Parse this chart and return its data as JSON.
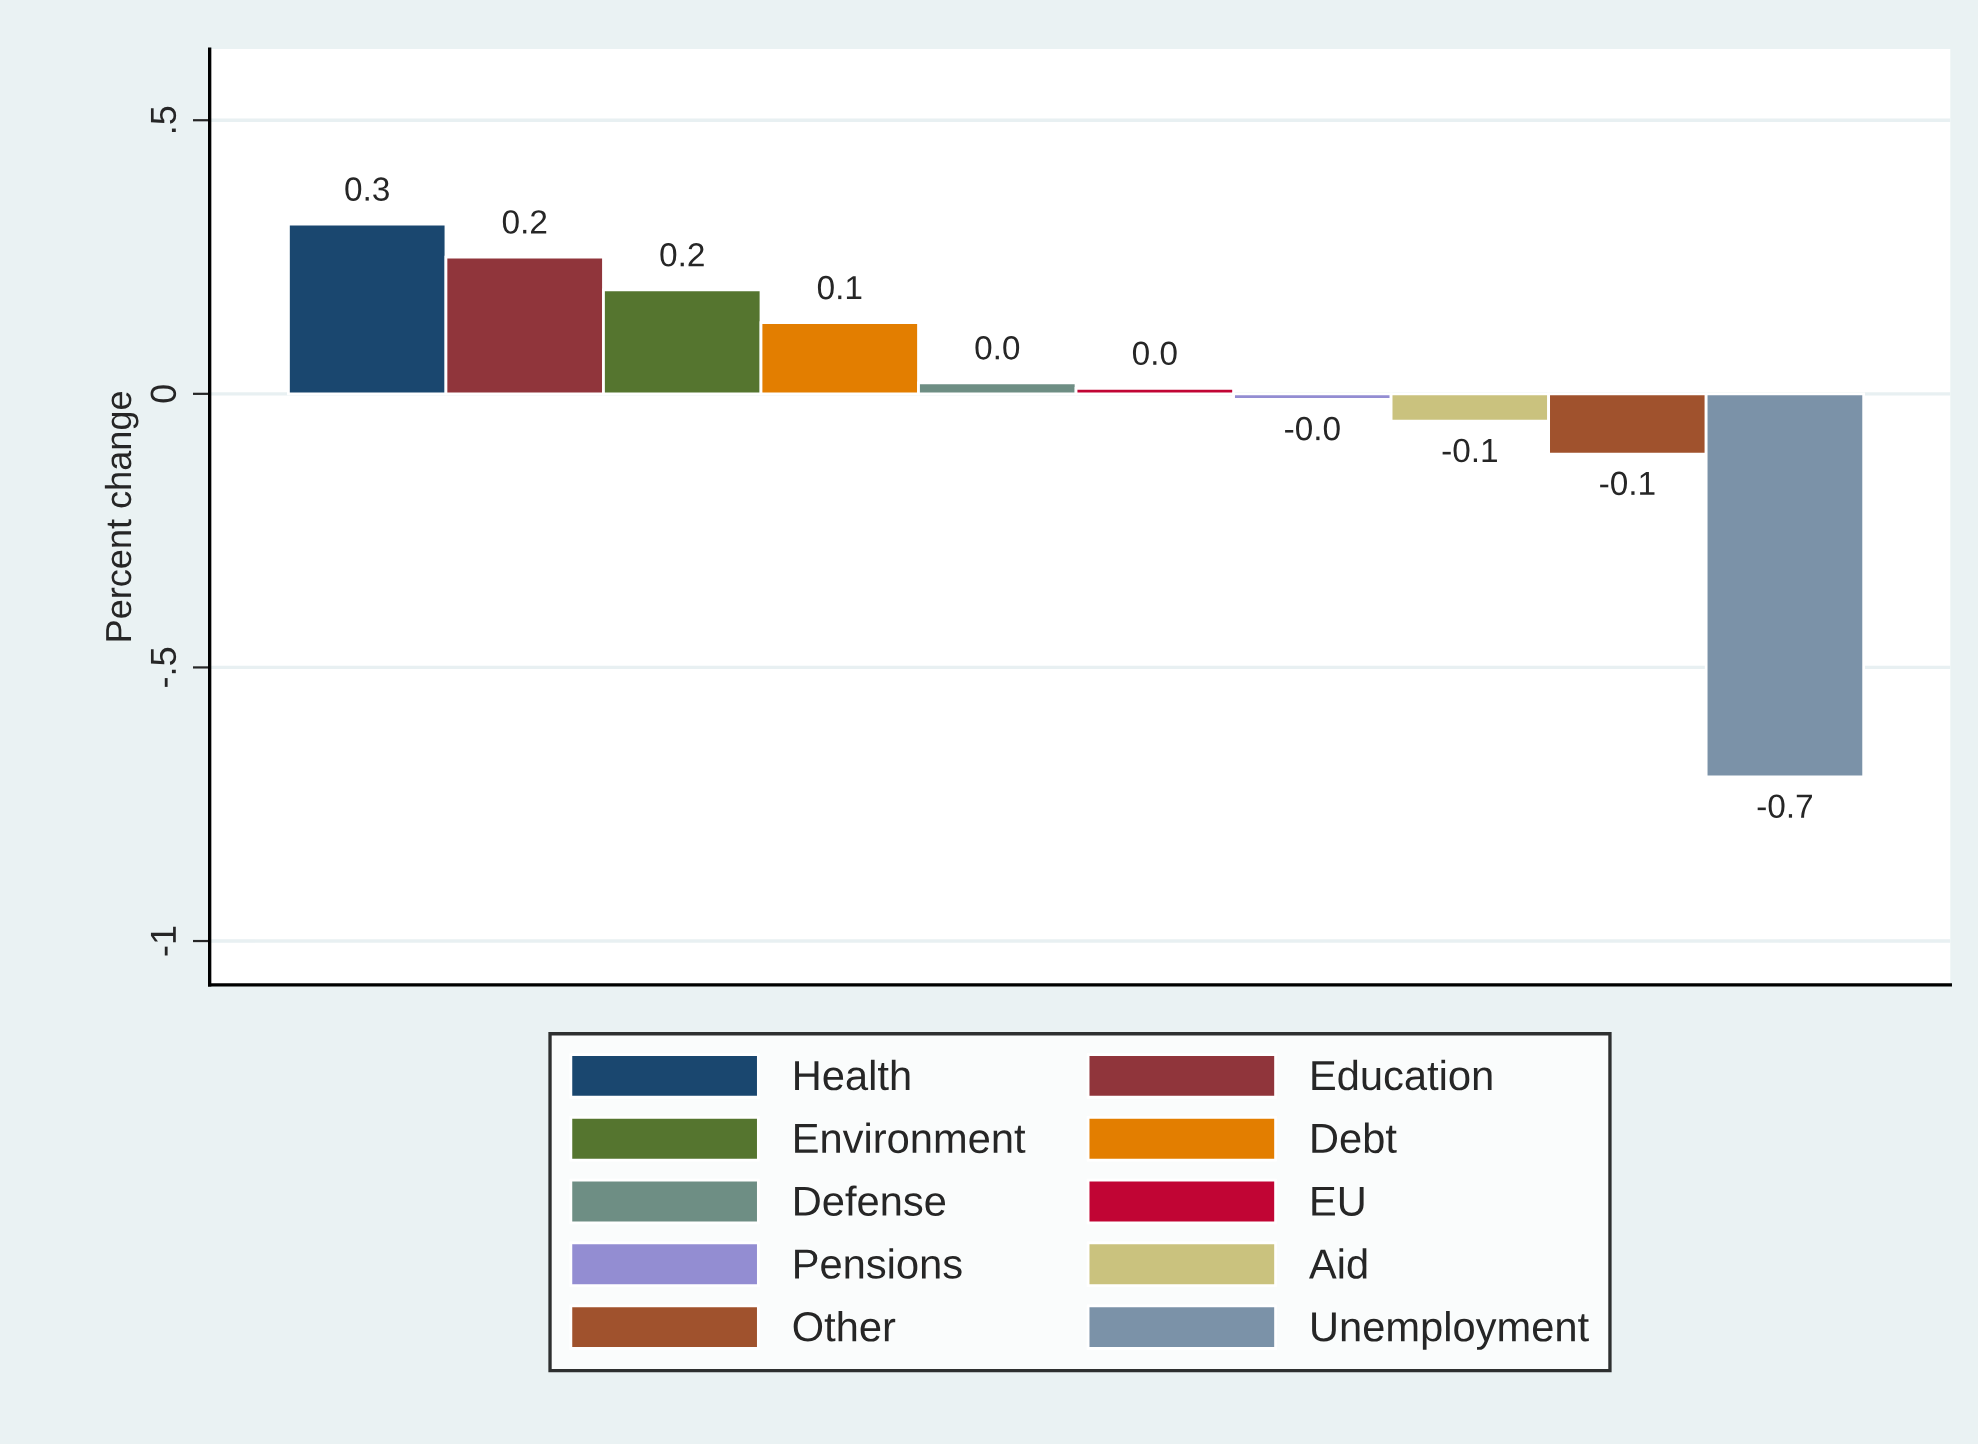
{
  "chart_data": {
    "type": "bar",
    "ylabel": "Percent change",
    "categories": [
      null,
      null,
      null,
      null,
      null,
      null,
      null,
      null,
      null,
      null
    ],
    "series": [
      {
        "name": "Health",
        "color": "#1a476f",
        "values": [
          0.31,
          null,
          null,
          null,
          null,
          null,
          null,
          null,
          null,
          null
        ],
        "value_labels": [
          "0.3",
          null,
          null,
          null,
          null,
          null,
          null,
          null,
          null,
          null
        ]
      },
      {
        "name": "Education",
        "color": "#90353b",
        "values": [
          null,
          0.25,
          null,
          null,
          null,
          null,
          null,
          null,
          null,
          null
        ],
        "value_labels": [
          null,
          "0.2",
          null,
          null,
          null,
          null,
          null,
          null,
          null,
          null
        ]
      },
      {
        "name": "Environment",
        "color": "#55752f",
        "values": [
          null,
          null,
          0.19,
          null,
          null,
          null,
          null,
          null,
          null,
          null
        ],
        "value_labels": [
          null,
          null,
          "0.2",
          null,
          null,
          null,
          null,
          null,
          null,
          null
        ]
      },
      {
        "name": "Debt",
        "color": "#e37e00",
        "values": [
          null,
          null,
          null,
          0.13,
          null,
          null,
          null,
          null,
          null,
          null
        ],
        "value_labels": [
          null,
          null,
          null,
          "0.1",
          null,
          null,
          null,
          null,
          null,
          null
        ]
      },
      {
        "name": "Defense",
        "color": "#6e8e84",
        "values": [
          null,
          null,
          null,
          null,
          0.02,
          null,
          null,
          null,
          null,
          null
        ],
        "value_labels": [
          null,
          null,
          null,
          null,
          "0.0",
          null,
          null,
          null,
          null,
          null
        ]
      },
      {
        "name": "EU",
        "color": "#c10534",
        "values": [
          null,
          null,
          null,
          null,
          null,
          0.01,
          null,
          null,
          null,
          null
        ],
        "value_labels": [
          null,
          null,
          null,
          null,
          null,
          "0.0",
          null,
          null,
          null,
          null
        ]
      },
      {
        "name": "Pensions",
        "color": "#938dd2",
        "values": [
          null,
          null,
          null,
          null,
          null,
          null,
          -0.01,
          null,
          null,
          null
        ],
        "value_labels": [
          null,
          null,
          null,
          null,
          null,
          null,
          "-0.0",
          null,
          null,
          null
        ]
      },
      {
        "name": "Aid",
        "color": "#cac27e",
        "values": [
          null,
          null,
          null,
          null,
          null,
          null,
          null,
          -0.05,
          null,
          null
        ],
        "value_labels": [
          null,
          null,
          null,
          null,
          null,
          null,
          null,
          "-0.1",
          null,
          null
        ]
      },
      {
        "name": "Other",
        "color": "#a0522d",
        "values": [
          null,
          null,
          null,
          null,
          null,
          null,
          null,
          null,
          -0.11,
          null
        ],
        "value_labels": [
          null,
          null,
          null,
          null,
          null,
          null,
          null,
          null,
          "-0.1",
          null
        ]
      },
      {
        "name": "Unemployment",
        "color": "#7b92a8",
        "values": [
          null,
          null,
          null,
          null,
          null,
          null,
          null,
          null,
          null,
          -0.7
        ],
        "value_labels": [
          null,
          null,
          null,
          null,
          null,
          null,
          null,
          null,
          null,
          "-0.7"
        ]
      }
    ],
    "ylim": [
      -1.08,
      0.63
    ],
    "yticks": [
      {
        "value": 0.5,
        "label": ".5"
      },
      0,
      {
        "value": -0.5,
        "label": "-.5"
      },
      -1
    ],
    "tick_labels": "y",
    "grid": "y",
    "legend": "bottom"
  }
}
